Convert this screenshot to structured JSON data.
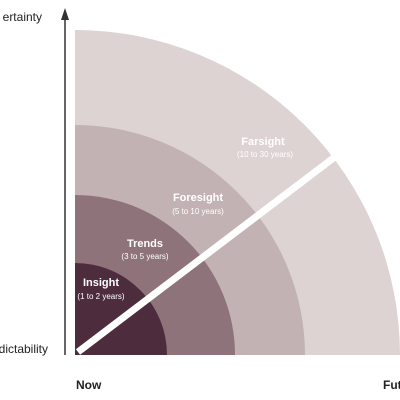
{
  "axes": {
    "y_top": "ertainty",
    "y_bottom": "dictability",
    "x_left": "Now",
    "x_right": "Fut"
  },
  "zones": [
    {
      "label": "Farsight",
      "range": "(10 to 30 years)"
    },
    {
      "label": "Foresight",
      "range": "(5 to 10 years)"
    },
    {
      "label": "Trends",
      "range": "(3 to 5 years)"
    },
    {
      "label": "Insight",
      "range": "(1 to 2 years)"
    }
  ]
}
